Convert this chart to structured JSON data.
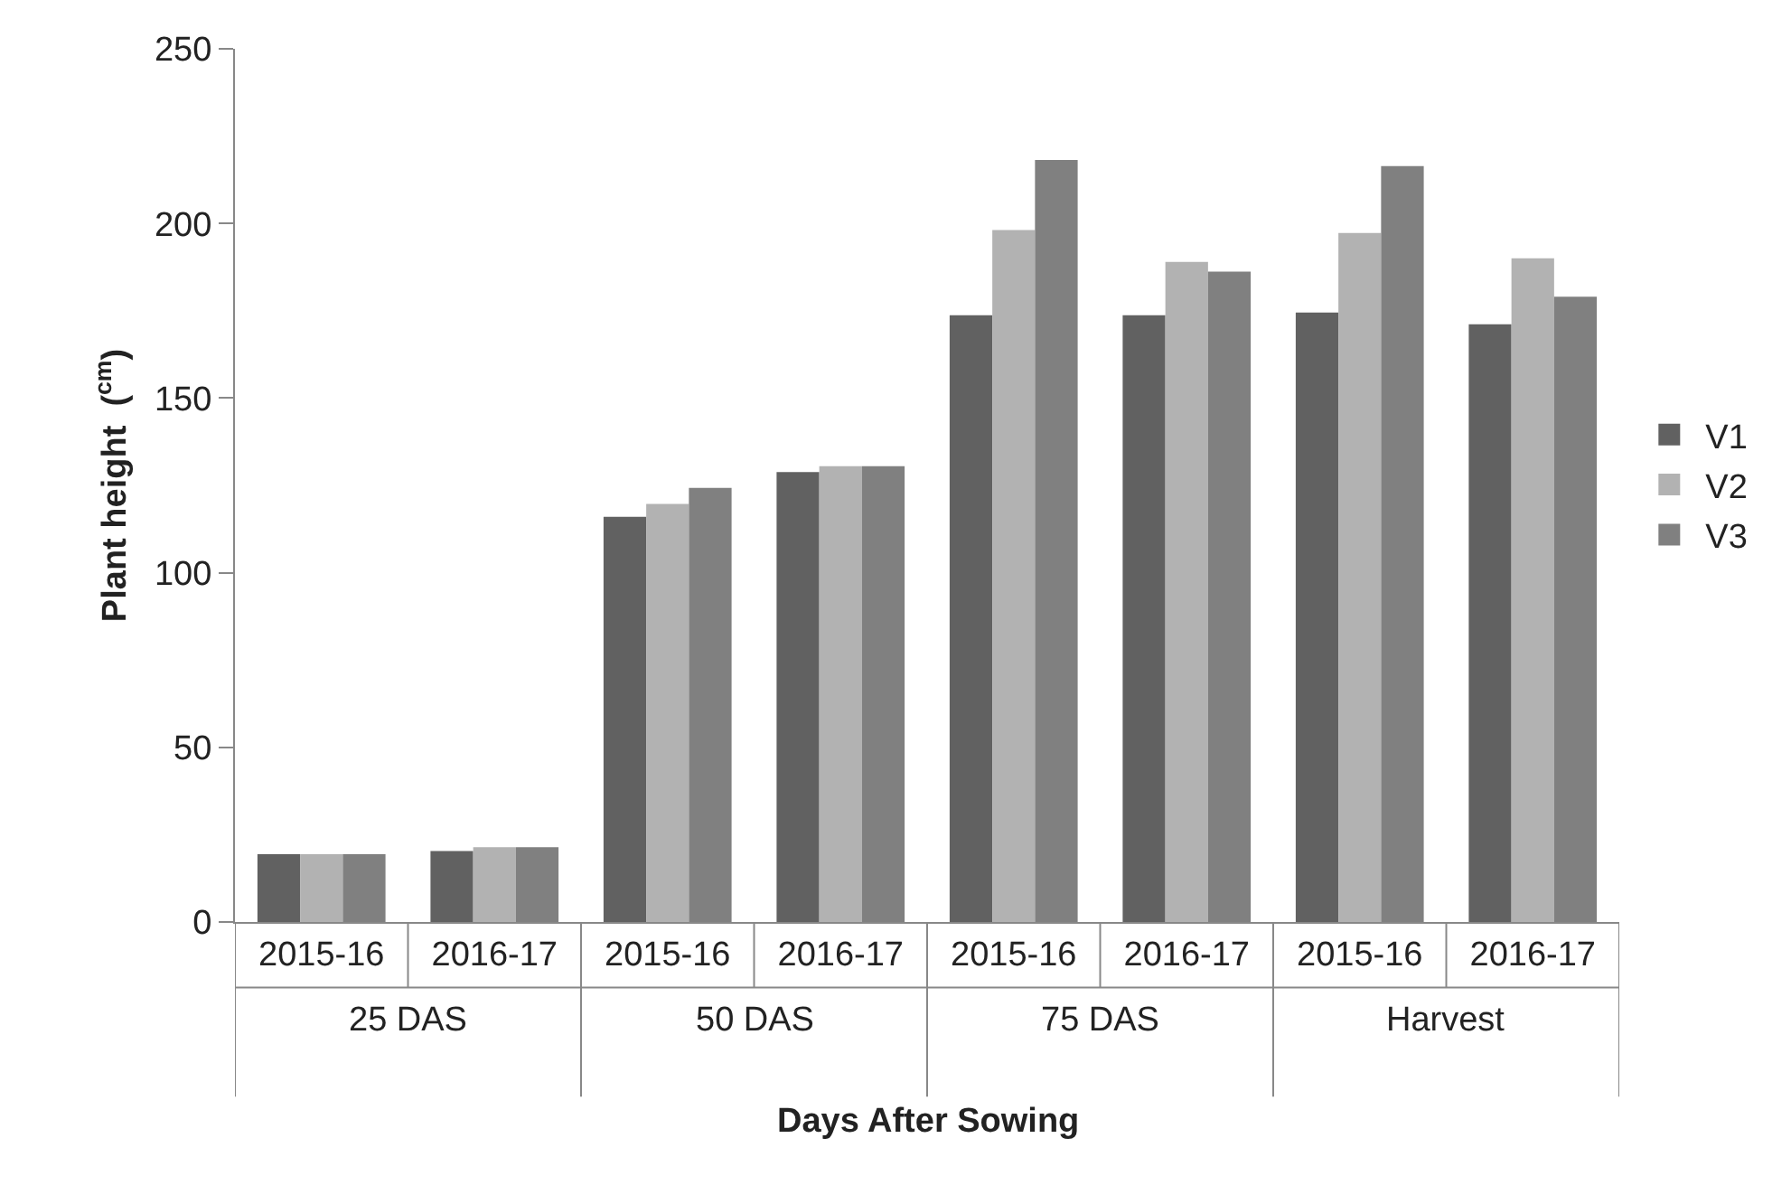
{
  "chart_data": {
    "type": "bar",
    "xlabel": "Days After Sowing",
    "ylabel": "Plant height  ($^{cm}$)",
    "categories": [
      "2015-16",
      "2016-17",
      "2015-16",
      "2016-17",
      "2015-16",
      "2016-17",
      "2015-16",
      "2016-17"
    ],
    "annotations": [
      "25 DAS",
      "50 DAS",
      "75 DAS",
      "Harvest"
    ],
    "series": [
      {
        "name": "V1",
        "color": "#616161",
        "values": [
          19.4,
          20.3,
          116.0,
          128.8,
          173.7,
          173.7,
          174.5,
          171.1
        ]
      },
      {
        "name": "V2",
        "color": "#b2b2b2",
        "values": [
          19.4,
          21.4,
          119.7,
          130.5,
          198.1,
          189.0,
          197.3,
          190.0
        ]
      },
      {
        "name": "V3",
        "color": "#808080",
        "values": [
          19.4,
          21.4,
          124.3,
          130.5,
          218.2,
          186.2,
          216.4,
          179.0
        ]
      }
    ],
    "ylim": [
      0,
      250
    ],
    "yticks": [
      0,
      50,
      100,
      150,
      200,
      250
    ],
    "legend": "right"
  }
}
